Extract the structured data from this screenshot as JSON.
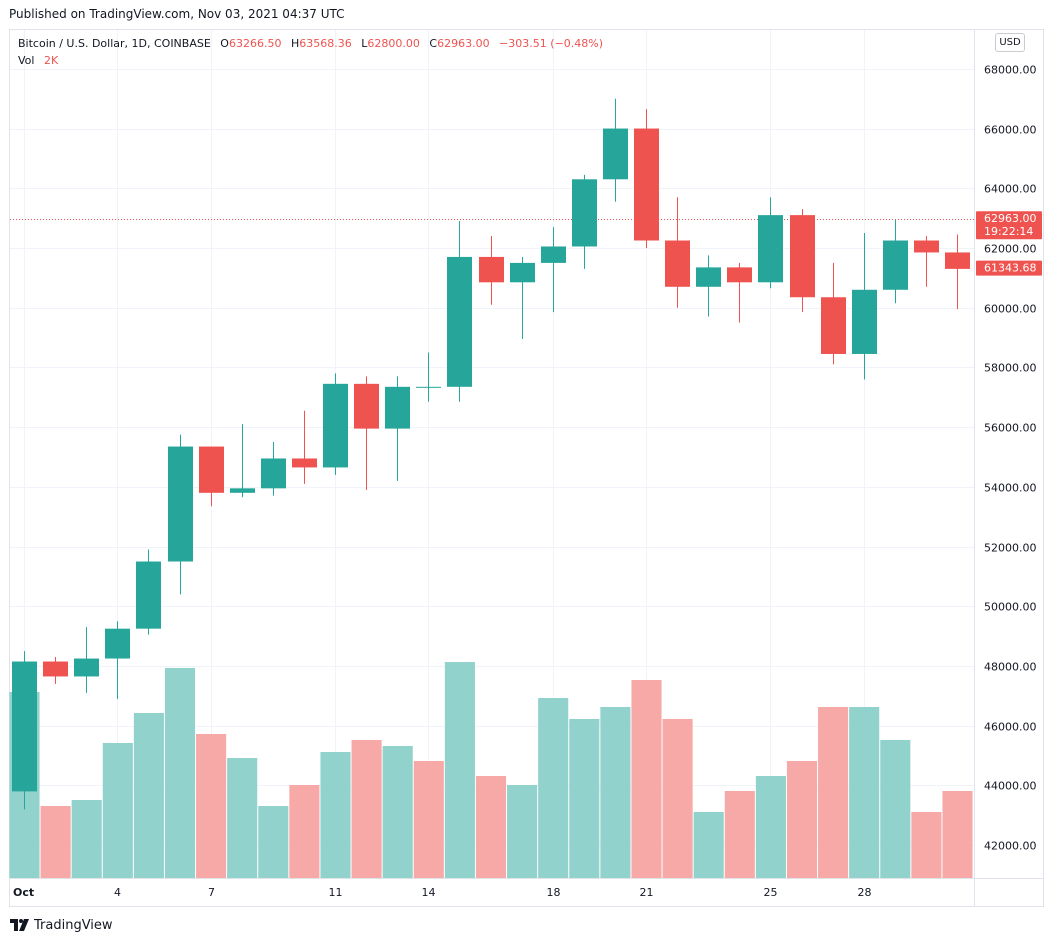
{
  "published": "Published on TradingView.com, Nov 03, 2021 04:37 UTC",
  "legend": {
    "symbol": "Bitcoin / U.S. Dollar, 1D, COINBASE",
    "o_label": "O",
    "o_value": "63266.50",
    "h_label": "H",
    "h_value": "63568.36",
    "l_label": "L",
    "l_value": "62800.00",
    "c_label": "C",
    "c_value": "62963.00",
    "change": "−303.51 (−0.48%)",
    "vol_label": "Vol",
    "vol_value": "2K"
  },
  "currency": "USD",
  "footer": {
    "brand": "TradingView"
  },
  "colors": {
    "up": "#26a69a",
    "down": "#ef5350",
    "vol_up": "#92d2cc",
    "vol_down": "#f7a9a7",
    "grid": "#f0f3fa",
    "text": "#131722"
  },
  "chart_data": {
    "type": "candlestick",
    "title": "Bitcoin / U.S. Dollar, 1D, COINBASE",
    "x_tick_labels": [
      "Oct",
      "4",
      "7",
      "11",
      "14",
      "18",
      "21",
      "25",
      "28"
    ],
    "x_tick_days": [
      1,
      4,
      7,
      11,
      14,
      18,
      21,
      25,
      28
    ],
    "y_tick_labels": [
      "42000.00",
      "44000.00",
      "46000.00",
      "48000.00",
      "50000.00",
      "52000.00",
      "54000.00",
      "56000.00",
      "58000.00",
      "60000.00",
      "62000.00",
      "64000.00",
      "66000.00",
      "68000.00"
    ],
    "ylim": [
      40900,
      69300
    ],
    "price_tags": [
      {
        "label": "62963.00",
        "sublabel": "19:22:14",
        "value": 62963,
        "color": "#ef5350"
      },
      {
        "label": "61343.68",
        "value": 61343.68,
        "color": "#ef5350"
      }
    ],
    "current_price_line": 62963,
    "candles": [
      {
        "day": 1,
        "o": 43800,
        "h": 48500,
        "l": 43200,
        "c": 48150
      },
      {
        "day": 2,
        "o": 48150,
        "h": 48300,
        "l": 47400,
        "c": 47650
      },
      {
        "day": 3,
        "o": 47650,
        "h": 49300,
        "l": 47100,
        "c": 48250
      },
      {
        "day": 4,
        "o": 48250,
        "h": 49500,
        "l": 46900,
        "c": 49250
      },
      {
        "day": 5,
        "o": 49250,
        "h": 51900,
        "l": 49050,
        "c": 51500
      },
      {
        "day": 6,
        "o": 51500,
        "h": 55750,
        "l": 50400,
        "c": 55350
      },
      {
        "day": 7,
        "o": 55350,
        "h": 55350,
        "l": 53350,
        "c": 53800
      },
      {
        "day": 8,
        "o": 53800,
        "h": 56100,
        "l": 53650,
        "c": 53950
      },
      {
        "day": 9,
        "o": 53950,
        "h": 55500,
        "l": 53700,
        "c": 54950
      },
      {
        "day": 10,
        "o": 54950,
        "h": 56550,
        "l": 54100,
        "c": 54650
      },
      {
        "day": 11,
        "o": 54650,
        "h": 57800,
        "l": 54400,
        "c": 57450
      },
      {
        "day": 12,
        "o": 57450,
        "h": 57700,
        "l": 53900,
        "c": 55950
      },
      {
        "day": 13,
        "o": 55950,
        "h": 57700,
        "l": 54200,
        "c": 57350
      },
      {
        "day": 14,
        "o": 57350,
        "h": 58500,
        "l": 56850,
        "c": 57350
      },
      {
        "day": 15,
        "o": 57350,
        "h": 62900,
        "l": 56850,
        "c": 61700
      },
      {
        "day": 16,
        "o": 61700,
        "h": 62400,
        "l": 60100,
        "c": 60850
      },
      {
        "day": 17,
        "o": 60850,
        "h": 61700,
        "l": 58950,
        "c": 61500
      },
      {
        "day": 18,
        "o": 61500,
        "h": 62700,
        "l": 59850,
        "c": 62050
      },
      {
        "day": 19,
        "o": 62050,
        "h": 64450,
        "l": 61300,
        "c": 64300
      },
      {
        "day": 20,
        "o": 64300,
        "h": 66999,
        "l": 63550,
        "c": 66000
      },
      {
        "day": 21,
        "o": 66000,
        "h": 66650,
        "l": 62000,
        "c": 62250
      },
      {
        "day": 22,
        "o": 62250,
        "h": 63700,
        "l": 60000,
        "c": 60700
      },
      {
        "day": 23,
        "o": 60700,
        "h": 61750,
        "l": 59700,
        "c": 61350
      },
      {
        "day": 24,
        "o": 61350,
        "h": 61500,
        "l": 59500,
        "c": 60850
      },
      {
        "day": 25,
        "o": 60850,
        "h": 63700,
        "l": 60650,
        "c": 63100
      },
      {
        "day": 26,
        "o": 63100,
        "h": 63300,
        "l": 59850,
        "c": 60350
      },
      {
        "day": 27,
        "o": 60350,
        "h": 61500,
        "l": 58100,
        "c": 58450
      },
      {
        "day": 28,
        "o": 58450,
        "h": 62500,
        "l": 57600,
        "c": 60600
      },
      {
        "day": 29,
        "o": 60600,
        "h": 62950,
        "l": 60150,
        "c": 62250
      },
      {
        "day": 30,
        "o": 62250,
        "h": 62400,
        "l": 60700,
        "c": 61850
      },
      {
        "day": 31,
        "o": 61850,
        "h": 62450,
        "l": 59950,
        "c": 61300
      }
    ],
    "volume": {
      "note": "relative volume, normalized 0-1 scale",
      "values": [
        0.62,
        0.24,
        0.26,
        0.45,
        0.55,
        0.7,
        0.48,
        0.4,
        0.24,
        0.31,
        0.42,
        0.46,
        0.44,
        0.39,
        0.72,
        0.34,
        0.31,
        0.6,
        0.53,
        0.57,
        0.66,
        0.53,
        0.22,
        0.29,
        0.34,
        0.39,
        0.57,
        0.57,
        0.46,
        0.22,
        0.29
      ],
      "up": [
        true,
        false,
        true,
        true,
        true,
        true,
        false,
        true,
        true,
        false,
        true,
        false,
        true,
        false,
        true,
        false,
        true,
        true,
        true,
        true,
        false,
        false,
        true,
        false,
        true,
        false,
        false,
        true,
        true,
        false,
        false
      ]
    }
  }
}
